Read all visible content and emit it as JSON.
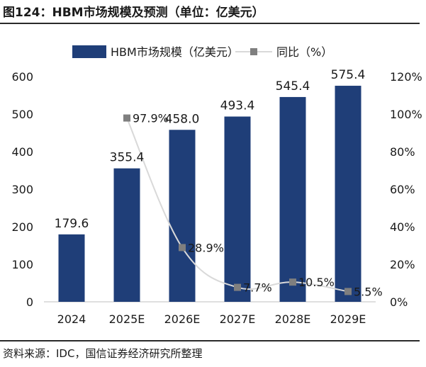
{
  "figure_title": "图124：HBM市场规模及预测（单位：亿美元）",
  "source": "资料来源：IDC，国信证券经济研究所整理",
  "colors": {
    "bar": "#1f3e78",
    "line": "#d9d9d9",
    "marker": "#7f7f7f",
    "text": "#1a1a1a"
  },
  "chart_data": {
    "type": "bar",
    "categories": [
      "2024",
      "2025E",
      "2026E",
      "2027E",
      "2028E",
      "2029E"
    ],
    "series": [
      {
        "name": "HBM市场规模（亿美元）",
        "type": "bar",
        "axis": "left",
        "values": [
          179.6,
          355.4,
          458.0,
          493.4,
          545.4,
          575.4
        ],
        "labels": [
          "179.6",
          "355.4",
          "458.0",
          "493.4",
          "545.4",
          "575.4"
        ]
      },
      {
        "name": "同比（%）",
        "type": "line",
        "axis": "right",
        "values": [
          null,
          97.9,
          28.9,
          7.7,
          10.5,
          5.5
        ],
        "labels": [
          null,
          "97.9%",
          "28.9%",
          "7.7%",
          "10.5%",
          "5.5%"
        ]
      }
    ],
    "ylim": [
      0,
      600
    ],
    "y_ticks": [
      "0",
      "100",
      "200",
      "300",
      "400",
      "500",
      "600"
    ],
    "y2lim": [
      0,
      120
    ],
    "y2_ticks": [
      "0%",
      "20%",
      "40%",
      "60%",
      "80%",
      "100%",
      "120%"
    ],
    "legend_position": "top",
    "grid": false
  }
}
